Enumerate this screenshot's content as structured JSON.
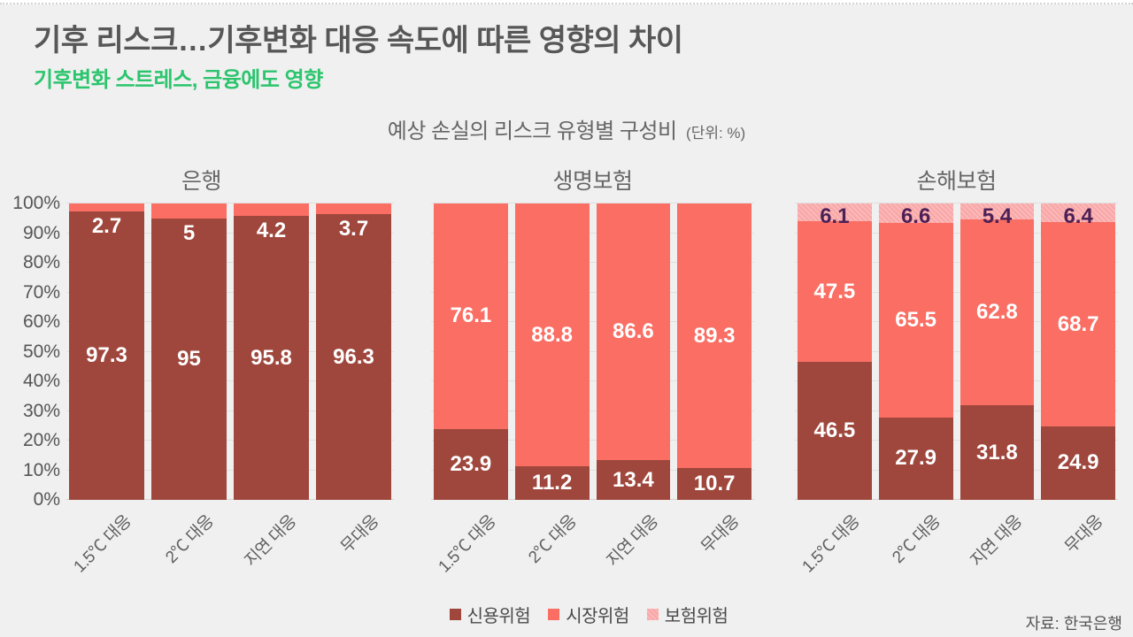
{
  "page": {
    "title": "기후 리스크…기후변화 대응 속도에 따른 영향의 차이",
    "subtitle": "기후변화 스트레스, 금융에도 영향",
    "source": "자료: 한국은행"
  },
  "colors": {
    "credit": "#9f473d",
    "market": "#fa6e64",
    "insurance": "#f9a9a9",
    "insurance_label_text": "#4c2156",
    "subtitle_green": "#2cc56e"
  },
  "chart_data": {
    "type": "bar",
    "stacked": true,
    "percent": true,
    "title": "예상 손실의 리스크 유형별 구성비",
    "unit_label": "(단위: %)",
    "categories": [
      "1.5℃ 대응",
      "2℃ 대응",
      "지연 대응",
      "무대응"
    ],
    "ylim": [
      0,
      100
    ],
    "y_ticks": [
      "0%",
      "10%",
      "20%",
      "30%",
      "40%",
      "50%",
      "60%",
      "70%",
      "80%",
      "90%",
      "100%"
    ],
    "grid": true,
    "legend_position": "bottom",
    "legend": [
      {
        "name": "신용위험",
        "color": "#9f473d"
      },
      {
        "name": "시장위험",
        "color": "#fa6e64"
      },
      {
        "name": "보험위험",
        "color": "#f9a9a9"
      }
    ],
    "panels": [
      {
        "title": "은행",
        "show_y_axis": true,
        "series": [
          {
            "name": "신용위험",
            "values": [
              97.3,
              95,
              95.8,
              96.3
            ]
          },
          {
            "name": "시장위험",
            "values": [
              2.7,
              5,
              4.2,
              3.7
            ]
          },
          {
            "name": "보험위험",
            "values": [
              0,
              0,
              0,
              0
            ]
          }
        ]
      },
      {
        "title": "생명보험",
        "show_y_axis": false,
        "series": [
          {
            "name": "신용위험",
            "values": [
              23.9,
              11.2,
              13.4,
              10.7
            ]
          },
          {
            "name": "시장위험",
            "values": [
              76.1,
              88.8,
              86.6,
              89.3
            ]
          },
          {
            "name": "보험위험",
            "values": [
              0,
              0,
              0,
              0
            ]
          }
        ]
      },
      {
        "title": "손해보험",
        "show_y_axis": false,
        "series": [
          {
            "name": "신용위험",
            "values": [
              46.5,
              27.9,
              31.8,
              24.9
            ]
          },
          {
            "name": "시장위험",
            "values": [
              47.5,
              65.5,
              62.8,
              68.7
            ]
          },
          {
            "name": "보험위험",
            "values": [
              6.1,
              6.6,
              5.4,
              6.4
            ]
          }
        ]
      }
    ]
  }
}
